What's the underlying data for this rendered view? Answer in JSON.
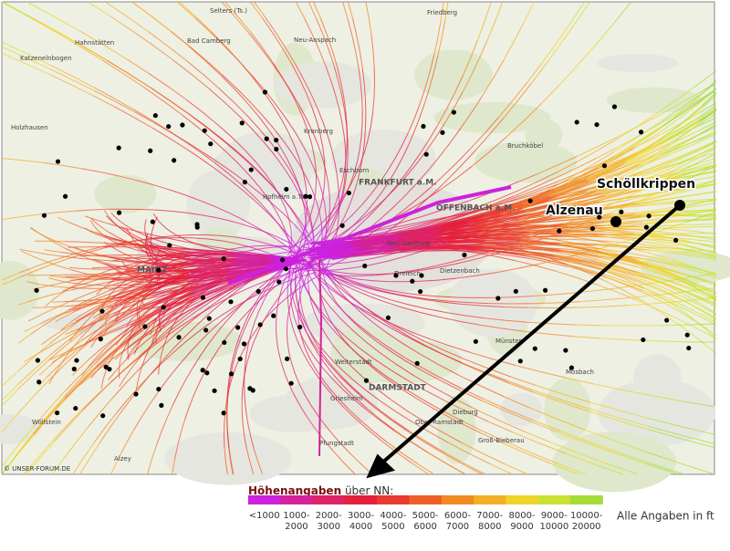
{
  "map": {
    "copyright": "© UNSER-FORUM.DE",
    "markers": [
      {
        "label": "Schöllkrippen"
      },
      {
        "label": "Alzenau"
      }
    ],
    "places": [
      {
        "label": "Selters (Ts.)"
      },
      {
        "label": "Hahnstätten"
      },
      {
        "label": "Katzenelnbogen"
      },
      {
        "label": "Bad Camberg"
      },
      {
        "label": "Neu-Anspach"
      },
      {
        "label": "Friedberg"
      },
      {
        "label": "Holzhausen"
      },
      {
        "label": "Kronberg"
      },
      {
        "label": "Eschborn"
      },
      {
        "label": "FRANKFURT a.M."
      },
      {
        "label": "Hofheim a.Ts."
      },
      {
        "label": "OFFENBACH a.M."
      },
      {
        "label": "Neu-Isenburg"
      },
      {
        "label": "Dreieich"
      },
      {
        "label": "Dietzenbach"
      },
      {
        "label": "MAINZ"
      },
      {
        "label": "Bruchköbel"
      },
      {
        "label": "Münster"
      },
      {
        "label": "Mosbach"
      },
      {
        "label": "Dieburg"
      },
      {
        "label": "Weiterstadt"
      },
      {
        "label": "Griesheim"
      },
      {
        "label": "DARMSTADT"
      },
      {
        "label": "Pfungstadt"
      },
      {
        "label": "Wöllstein"
      },
      {
        "label": "Alzey"
      },
      {
        "label": "Ober-Ramstadt"
      },
      {
        "label": "Groß-Bieberau"
      }
    ]
  },
  "legend": {
    "title_bold": "Höhenangaben",
    "title_rest": "über NN:",
    "note": "Alle Angaben in ft",
    "bins": [
      {
        "label": [
          "<1000"
        ],
        "color": "#cc22dd"
      },
      {
        "label": [
          "1000-",
          "2000"
        ],
        "color": "#d6229a"
      },
      {
        "label": [
          "2000-",
          "3000"
        ],
        "color": "#dd2266"
      },
      {
        "label": [
          "3000-",
          "4000"
        ],
        "color": "#e4203c"
      },
      {
        "label": [
          "4000-",
          "5000"
        ],
        "color": "#ea3a30"
      },
      {
        "label": [
          "5000-",
          "6000"
        ],
        "color": "#ee6028"
      },
      {
        "label": [
          "6000-",
          "7000"
        ],
        "color": "#f28a24"
      },
      {
        "label": [
          "7000-",
          "8000"
        ],
        "color": "#f4b024"
      },
      {
        "label": [
          "8000-",
          "9000"
        ],
        "color": "#eed428"
      },
      {
        "label": [
          "9000-",
          "10000"
        ],
        "color": "#cce030"
      },
      {
        "label": [
          "10000-",
          "20000"
        ],
        "color": "#a6dc38"
      }
    ]
  }
}
